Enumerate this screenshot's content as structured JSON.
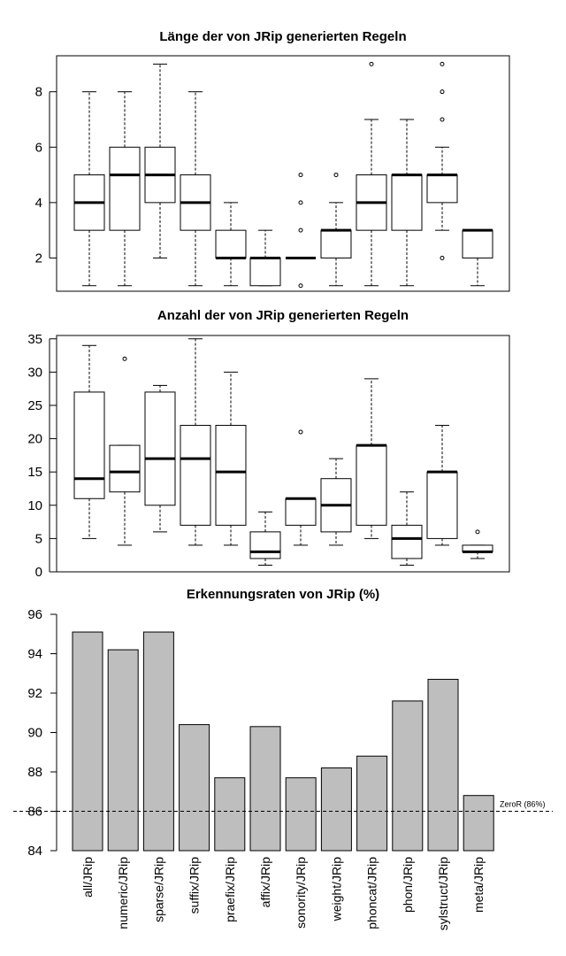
{
  "chart_data": [
    {
      "type": "box",
      "title": "Länge der von JRip generierten Regeln",
      "categories": [
        "all/JRip",
        "numeric/JRip",
        "sparse/JRip",
        "suffix/JRip",
        "praefix/JRip",
        "affix/JRip",
        "sonority/JRip",
        "weight/JRip",
        "phoncat/JRip",
        "phon/JRip",
        "sylstruct/JRip",
        "meta/JRip"
      ],
      "ylim": [
        0.8,
        9.3
      ],
      "yticks": [
        2,
        4,
        6,
        8
      ],
      "grid": false,
      "boxes": [
        {
          "min": 1,
          "q1": 3,
          "median": 4,
          "q3": 5,
          "max": 8,
          "outliers": []
        },
        {
          "min": 1,
          "q1": 3,
          "median": 5,
          "q3": 6,
          "max": 8,
          "outliers": []
        },
        {
          "min": 2,
          "q1": 4,
          "median": 5,
          "q3": 6,
          "max": 9,
          "outliers": []
        },
        {
          "min": 1,
          "q1": 3,
          "median": 4,
          "q3": 5,
          "max": 8,
          "outliers": []
        },
        {
          "min": 1,
          "q1": 2,
          "median": 2,
          "q3": 3,
          "max": 4,
          "outliers": []
        },
        {
          "min": 1,
          "q1": 1,
          "median": 2,
          "q3": 2,
          "max": 3,
          "outliers": []
        },
        {
          "min": 2,
          "q1": 2,
          "median": 2,
          "q3": 2,
          "max": 2,
          "outliers": [
            1,
            3,
            4,
            5
          ]
        },
        {
          "min": 1,
          "q1": 2,
          "median": 3,
          "q3": 3,
          "max": 4,
          "outliers": [
            5
          ]
        },
        {
          "min": 1,
          "q1": 3,
          "median": 4,
          "q3": 5,
          "max": 7,
          "outliers": [
            9
          ]
        },
        {
          "min": 1,
          "q1": 3,
          "median": 5,
          "q3": 5,
          "max": 7,
          "outliers": []
        },
        {
          "min": 3,
          "q1": 4,
          "median": 5,
          "q3": 5,
          "max": 6,
          "outliers": [
            2,
            7,
            8,
            9
          ]
        },
        {
          "min": 1,
          "q1": 2,
          "median": 3,
          "q3": 3,
          "max": 3,
          "outliers": []
        }
      ]
    },
    {
      "type": "box",
      "title": "Anzahl der von JRip generierten Regeln",
      "categories": [
        "all/JRip",
        "numeric/JRip",
        "sparse/JRip",
        "suffix/JRip",
        "praefix/JRip",
        "affix/JRip",
        "sonority/JRip",
        "weight/JRip",
        "phoncat/JRip",
        "phon/JRip",
        "sylstruct/JRip",
        "meta/JRip"
      ],
      "ylim": [
        0,
        35.5
      ],
      "yticks": [
        0,
        5,
        10,
        15,
        20,
        25,
        30,
        35
      ],
      "grid": false,
      "boxes": [
        {
          "min": 5,
          "q1": 11,
          "median": 14,
          "q3": 27,
          "max": 34,
          "outliers": []
        },
        {
          "min": 4,
          "q1": 12,
          "median": 15,
          "q3": 19,
          "max": 19,
          "outliers": [
            32
          ]
        },
        {
          "min": 6,
          "q1": 10,
          "median": 17,
          "q3": 27,
          "max": 28,
          "outliers": []
        },
        {
          "min": 4,
          "q1": 7,
          "median": 17,
          "q3": 22,
          "max": 35,
          "outliers": []
        },
        {
          "min": 4,
          "q1": 7,
          "median": 15,
          "q3": 22,
          "max": 30,
          "outliers": []
        },
        {
          "min": 1,
          "q1": 2,
          "median": 3,
          "q3": 6,
          "max": 9,
          "outliers": []
        },
        {
          "min": 4,
          "q1": 7,
          "median": 11,
          "q3": 11,
          "max": 11,
          "outliers": [
            21
          ]
        },
        {
          "min": 4,
          "q1": 6,
          "median": 10,
          "q3": 14,
          "max": 17,
          "outliers": []
        },
        {
          "min": 5,
          "q1": 7,
          "median": 19,
          "q3": 19,
          "max": 29,
          "outliers": []
        },
        {
          "min": 1,
          "q1": 2,
          "median": 5,
          "q3": 7,
          "max": 12,
          "outliers": []
        },
        {
          "min": 4,
          "q1": 5,
          "median": 15,
          "q3": 15,
          "max": 22,
          "outliers": []
        },
        {
          "min": 2,
          "q1": 3,
          "median": 3,
          "q3": 4,
          "max": 4,
          "outliers": [
            6
          ]
        }
      ]
    },
    {
      "type": "bar",
      "title": "Erkennungsraten von JRip (%)",
      "categories": [
        "all/JRip",
        "numeric/JRip",
        "sparse/JRip",
        "suffix/JRip",
        "praefix/JRip",
        "affix/JRip",
        "sonority/JRip",
        "weight/JRip",
        "phoncat/JRip",
        "phon/JRip",
        "sylstruct/JRip",
        "meta/JRip"
      ],
      "values": [
        95.1,
        94.2,
        95.1,
        90.4,
        87.7,
        90.3,
        87.7,
        88.2,
        88.8,
        91.6,
        92.7,
        86.8
      ],
      "ylim": [
        84,
        96
      ],
      "yticks": [
        84,
        86,
        88,
        90,
        92,
        94,
        96
      ],
      "grid": false,
      "reference_line": {
        "value": 86,
        "label": "ZeroR (86%)"
      },
      "bar_color": "#bebebe"
    }
  ]
}
